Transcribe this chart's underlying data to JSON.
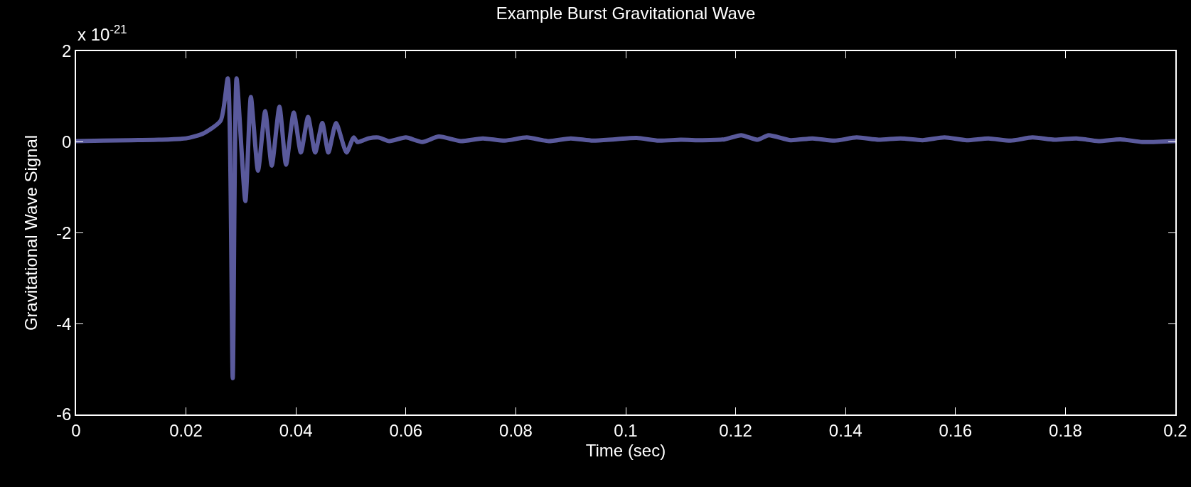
{
  "chart_data": {
    "type": "line",
    "title": "Example Burst Gravitational Wave",
    "xlabel": "Time (sec)",
    "ylabel": "Gravitational Wave Signal",
    "annotations": [
      "x 10$^{-21}$"
    ],
    "x": [
      0,
      0.005,
      0.01,
      0.015,
      0.02,
      0.023,
      0.0263,
      0.0276,
      0.0285,
      0.0292,
      0.0308,
      0.0318,
      0.0331,
      0.0344,
      0.0356,
      0.037,
      0.0382,
      0.0396,
      0.0409,
      0.0422,
      0.0435,
      0.0448,
      0.0459,
      0.0473,
      0.0492,
      0.0505,
      0.0512,
      0.0532,
      0.055,
      0.057,
      0.06,
      0.063,
      0.066,
      0.07,
      0.074,
      0.078,
      0.082,
      0.086,
      0.09,
      0.094,
      0.098,
      0.102,
      0.106,
      0.11,
      0.114,
      0.118,
      0.121,
      0.124,
      0.126,
      0.13,
      0.134,
      0.138,
      0.142,
      0.146,
      0.15,
      0.154,
      0.158,
      0.162,
      0.166,
      0.17,
      0.174,
      0.178,
      0.182,
      0.186,
      0.19,
      0.194,
      0.2
    ],
    "series": [
      {
        "color": "#5a5a9c",
        "values": [
          0.02,
          0.03,
          0.04,
          0.05,
          0.08,
          0.18,
          0.47,
          1.4,
          -5.2,
          1.4,
          -1.3,
          0.99,
          -0.63,
          0.68,
          -0.52,
          0.78,
          -0.5,
          0.65,
          -0.23,
          0.55,
          -0.23,
          0.42,
          -0.23,
          0.42,
          -0.23,
          0.1,
          0,
          0.08,
          0.1,
          0.02,
          0.1,
          0,
          0.12,
          0.02,
          0.08,
          0.03,
          0.1,
          0.02,
          0.08,
          0.03,
          0.06,
          0.09,
          0.03,
          0.05,
          0.04,
          0.06,
          0.15,
          0.05,
          0.15,
          0.04,
          0.08,
          0.03,
          0.1,
          0.05,
          0.08,
          0.04,
          0.1,
          0.04,
          0.08,
          0.03,
          0.1,
          0.05,
          0.08,
          0.02,
          0.06,
          0,
          0.02
        ]
      }
    ],
    "xlim": [
      0,
      0.2
    ],
    "xticks": [
      0,
      0.02,
      0.04,
      0.06,
      0.08,
      0.1,
      0.12,
      0.14,
      0.16,
      0.18,
      0.2
    ],
    "ylim": [
      -6,
      2
    ],
    "yticks": [
      -6,
      -4,
      -2,
      0,
      2
    ],
    "grid": false,
    "marker": "none",
    "line_style": "solid"
  }
}
